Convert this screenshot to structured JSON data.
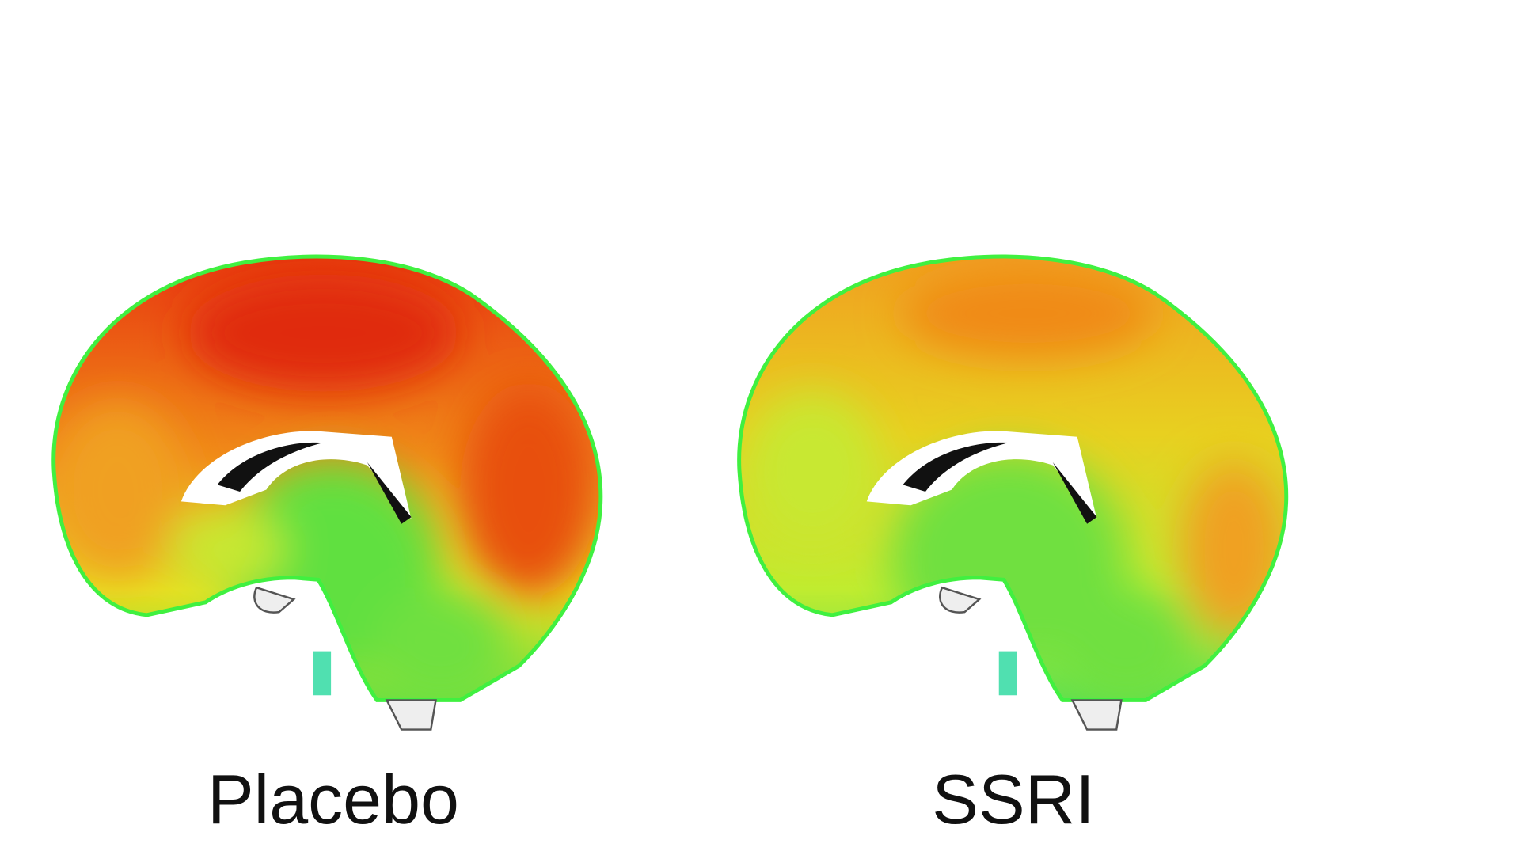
{
  "panels": [
    {
      "label": "Placebo"
    },
    {
      "label": "SSRI"
    }
  ]
}
